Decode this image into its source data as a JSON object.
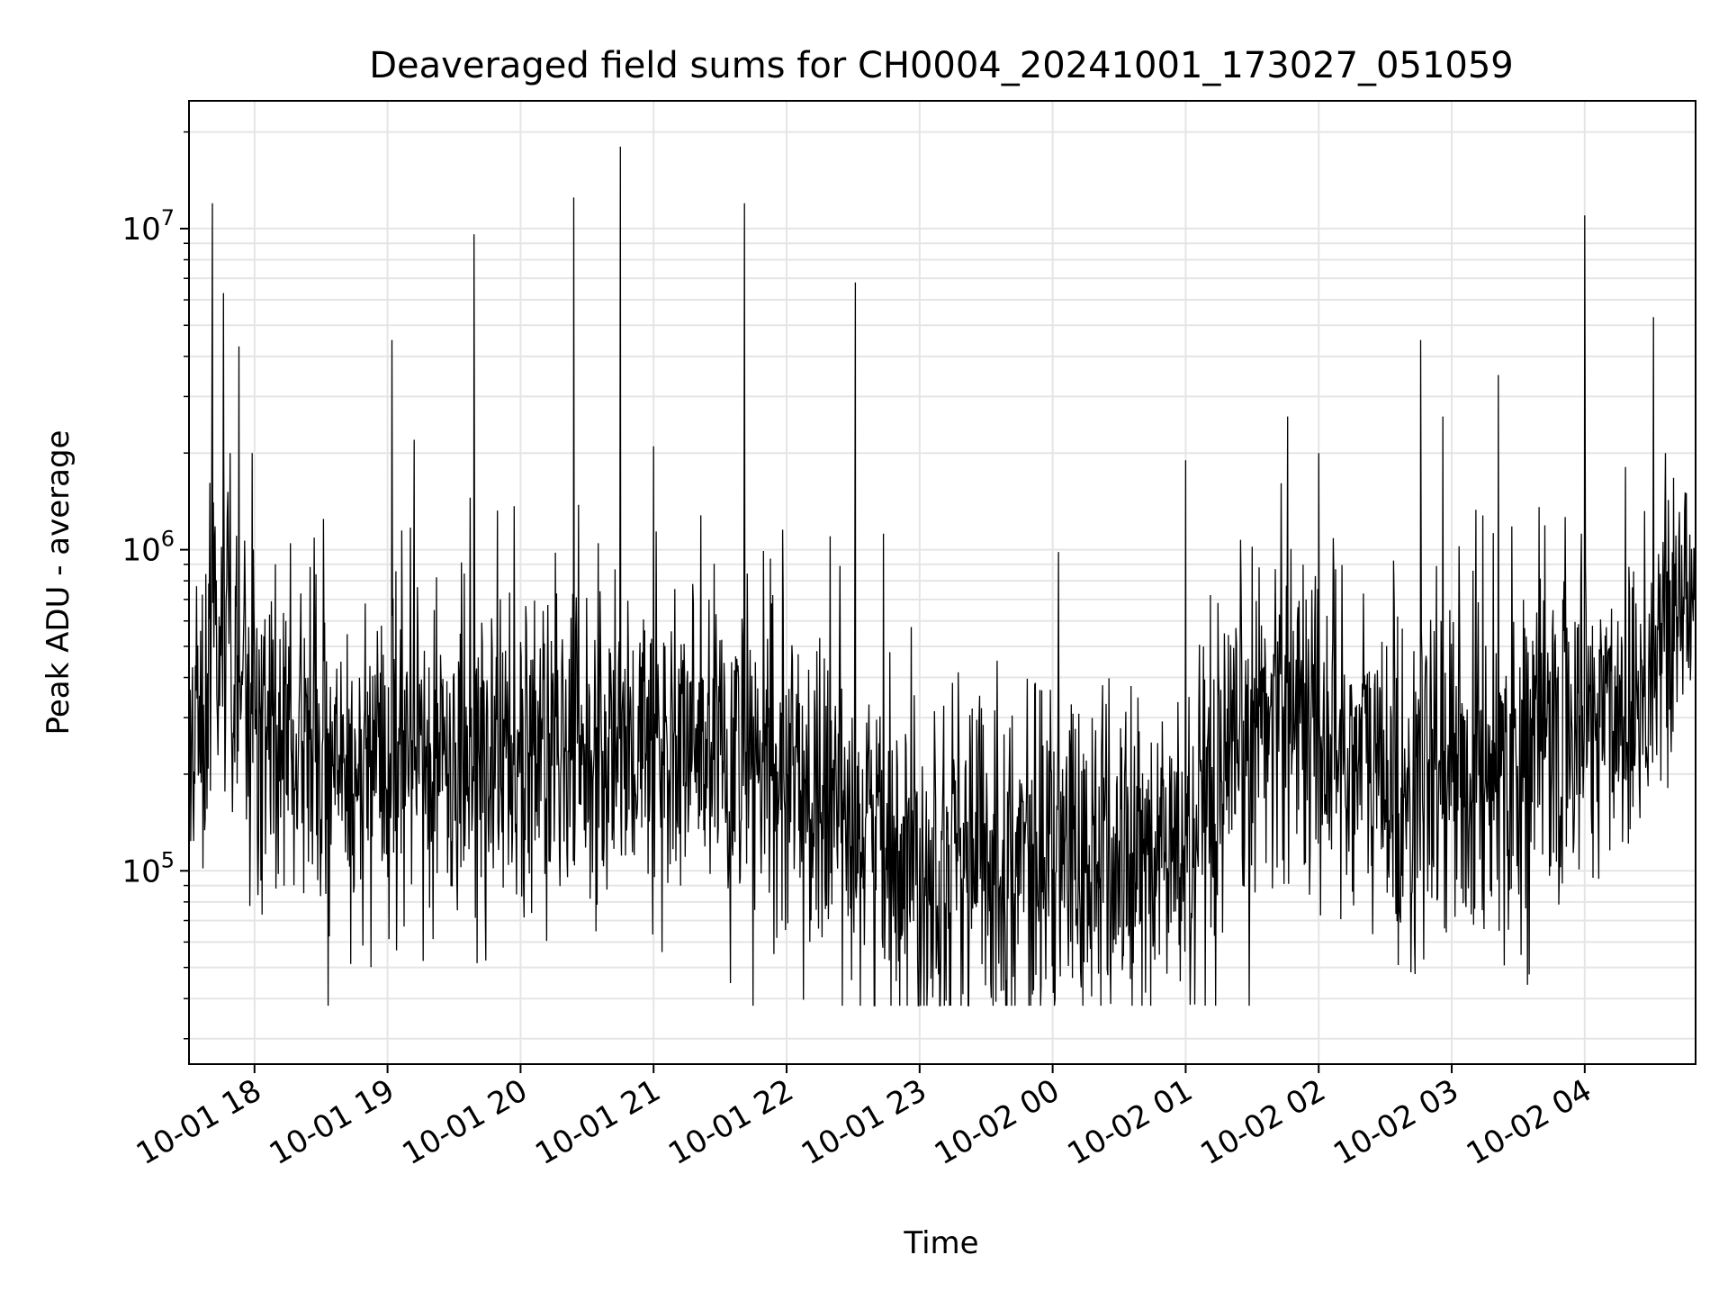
{
  "chart_data": {
    "type": "line",
    "title": "Deaveraged field sums for CH0004_20241001_173027_051059",
    "xlabel": "Time",
    "ylabel": "Peak ADU - average",
    "yscale": "log",
    "ylim": [
      25000,
      25000000
    ],
    "xlim": [
      "2024-10-01 17:30:27",
      "2024-10-02 04:50:00"
    ],
    "grid": true,
    "line_color": "#000000",
    "grid_color": "#e5e5e5",
    "x_ticks": [
      "2024-10-01 18:00",
      "2024-10-01 19:00",
      "2024-10-01 20:00",
      "2024-10-01 21:00",
      "2024-10-01 22:00",
      "2024-10-01 23:00",
      "2024-10-02 00:00",
      "2024-10-02 01:00",
      "2024-10-02 02:00",
      "2024-10-02 03:00",
      "2024-10-02 04:00"
    ],
    "x_tick_labels": [
      "10-01 18",
      "10-01 19",
      "10-01 20",
      "10-01 21",
      "10-01 22",
      "10-01 23",
      "10-02 00",
      "10-02 01",
      "10-02 02",
      "10-02 03",
      "10-02 04"
    ],
    "y_ticks": [
      100000,
      1000000,
      10000000
    ],
    "y_tick_labels": [
      {
        "base": "10",
        "exp": "5"
      },
      {
        "base": "10",
        "exp": "6"
      },
      {
        "base": "10",
        "exp": "7"
      }
    ],
    "series": [
      {
        "baseline": [
          [
            "2024-10-01 17:30",
            150000
          ],
          [
            "2024-10-01 17:42",
            700000
          ],
          [
            "2024-10-01 17:55",
            400000
          ],
          [
            "2024-10-01 18:10",
            260000
          ],
          [
            "2024-10-01 18:40",
            200000
          ],
          [
            "2024-10-01 19:30",
            240000
          ],
          [
            "2024-10-01 20:30",
            250000
          ],
          [
            "2024-10-01 21:30",
            230000
          ],
          [
            "2024-10-01 22:30",
            150000
          ],
          [
            "2024-10-01 23:00",
            110000
          ],
          [
            "2024-10-02 00:00",
            110000
          ],
          [
            "2024-10-02 00:30",
            105000
          ],
          [
            "2024-10-02 01:10",
            120000
          ],
          [
            "2024-10-02 01:40",
            380000
          ],
          [
            "2024-10-02 02:10",
            250000
          ],
          [
            "2024-10-02 02:40",
            170000
          ],
          [
            "2024-10-02 03:00",
            200000
          ],
          [
            "2024-10-02 03:45",
            260000
          ],
          [
            "2024-10-02 04:20",
            350000
          ],
          [
            "2024-10-02 04:48",
            700000
          ]
        ],
        "spikes": [
          [
            "2024-10-01 17:41",
            12000000
          ],
          [
            "2024-10-01 17:46",
            6300000
          ],
          [
            "2024-10-01 17:53",
            4300000
          ],
          [
            "2024-10-01 19:02",
            4500000
          ],
          [
            "2024-10-01 19:12",
            2200000
          ],
          [
            "2024-10-01 19:39",
            9600000
          ],
          [
            "2024-10-01 20:24",
            12500000
          ],
          [
            "2024-10-01 20:45",
            18000000
          ],
          [
            "2024-10-01 21:00",
            2100000
          ],
          [
            "2024-10-01 21:41",
            12000000
          ],
          [
            "2024-10-01 22:31",
            6800000
          ],
          [
            "2024-10-02 01:00",
            1900000
          ],
          [
            "2024-10-02 01:46",
            2600000
          ],
          [
            "2024-10-02 02:46",
            4500000
          ],
          [
            "2024-10-02 02:56",
            2600000
          ],
          [
            "2024-10-02 03:21",
            3500000
          ],
          [
            "2024-10-02 04:00",
            11000000
          ],
          [
            "2024-10-02 04:31",
            5300000
          ]
        ]
      }
    ]
  }
}
